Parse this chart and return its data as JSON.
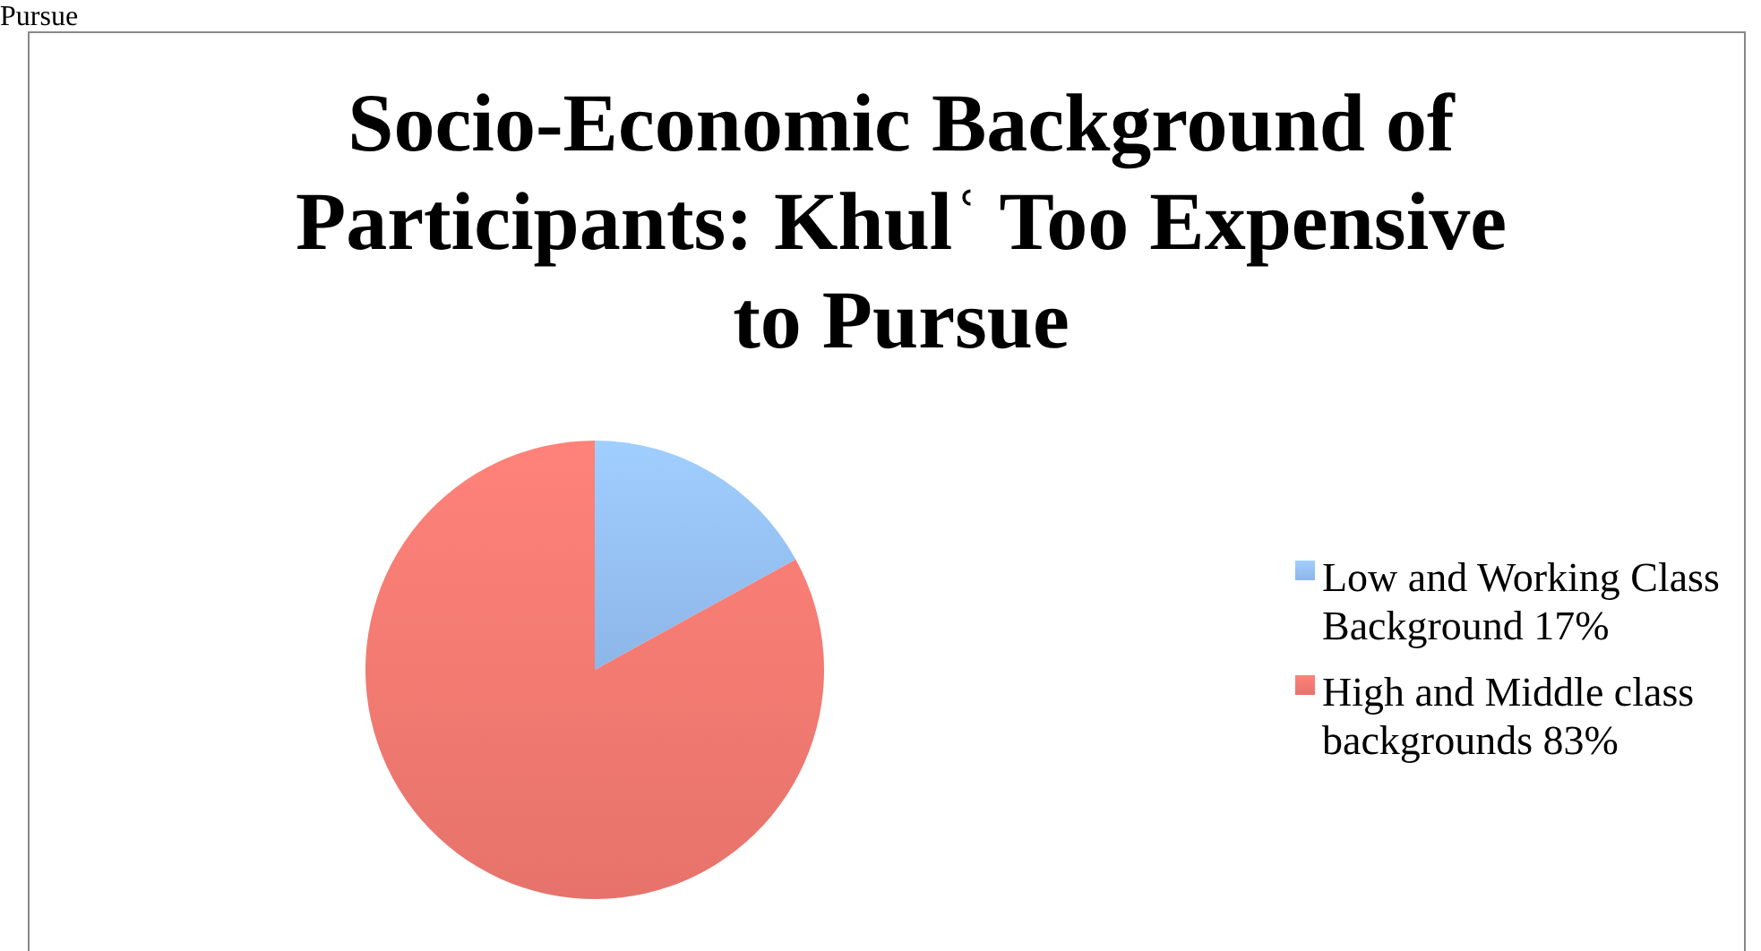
{
  "chart_data": {
    "type": "pie",
    "title": "Socio-Economic Background of Participants: Khulʿ Too Expensive to Pursue",
    "categories": [
      "Low and Working Class Background 17%",
      "High and Middle class backgrounds 83%"
    ],
    "values": [
      17,
      83
    ],
    "colors": [
      "#8db6e8",
      "#e6736b"
    ],
    "legend": "right",
    "annotations": [
      "Pursue"
    ]
  }
}
